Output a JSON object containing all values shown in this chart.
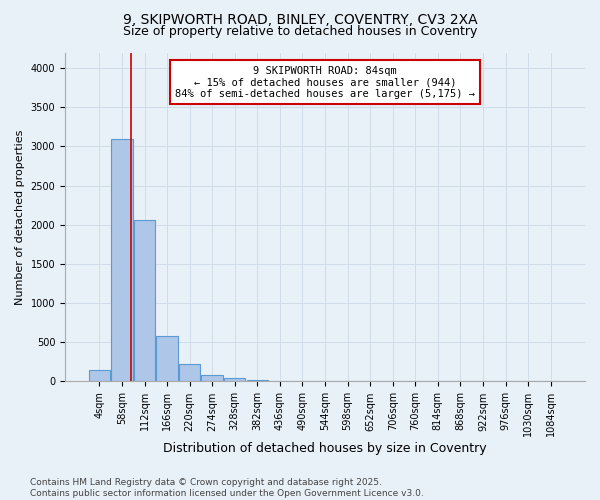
{
  "title1": "9, SKIPWORTH ROAD, BINLEY, COVENTRY, CV3 2XA",
  "title2": "Size of property relative to detached houses in Coventry",
  "xlabel": "Distribution of detached houses by size in Coventry",
  "ylabel": "Number of detached properties",
  "bar_labels": [
    "4sqm",
    "58sqm",
    "112sqm",
    "166sqm",
    "220sqm",
    "274sqm",
    "328sqm",
    "382sqm",
    "436sqm",
    "490sqm",
    "544sqm",
    "598sqm",
    "652sqm",
    "706sqm",
    "760sqm",
    "814sqm",
    "868sqm",
    "922sqm",
    "976sqm",
    "1030sqm",
    "1084sqm"
  ],
  "bar_values": [
    150,
    3100,
    2060,
    580,
    220,
    80,
    40,
    25,
    5,
    0,
    0,
    0,
    0,
    0,
    0,
    0,
    0,
    0,
    0,
    0,
    0
  ],
  "bar_color": "#aec6e8",
  "bar_edge_color": "#5b9bd5",
  "bar_linewidth": 0.8,
  "annotation_text": "9 SKIPWORTH ROAD: 84sqm\n← 15% of detached houses are smaller (944)\n84% of semi-detached houses are larger (5,175) →",
  "annotation_box_color": "#ffffff",
  "annotation_edge_color": "#cc0000",
  "red_line_x": 1.38,
  "red_line_color": "#cc0000",
  "ylim": [
    0,
    4200
  ],
  "yticks": [
    0,
    500,
    1000,
    1500,
    2000,
    2500,
    3000,
    3500,
    4000
  ],
  "grid_color": "#d0dce8",
  "bg_color": "#e8f0f8",
  "footnote": "Contains HM Land Registry data © Crown copyright and database right 2025.\nContains public sector information licensed under the Open Government Licence v3.0.",
  "title1_fontsize": 10,
  "title2_fontsize": 9,
  "xlabel_fontsize": 9,
  "ylabel_fontsize": 8,
  "tick_fontsize": 7,
  "annotation_fontsize": 7.5,
  "footnote_fontsize": 6.5
}
